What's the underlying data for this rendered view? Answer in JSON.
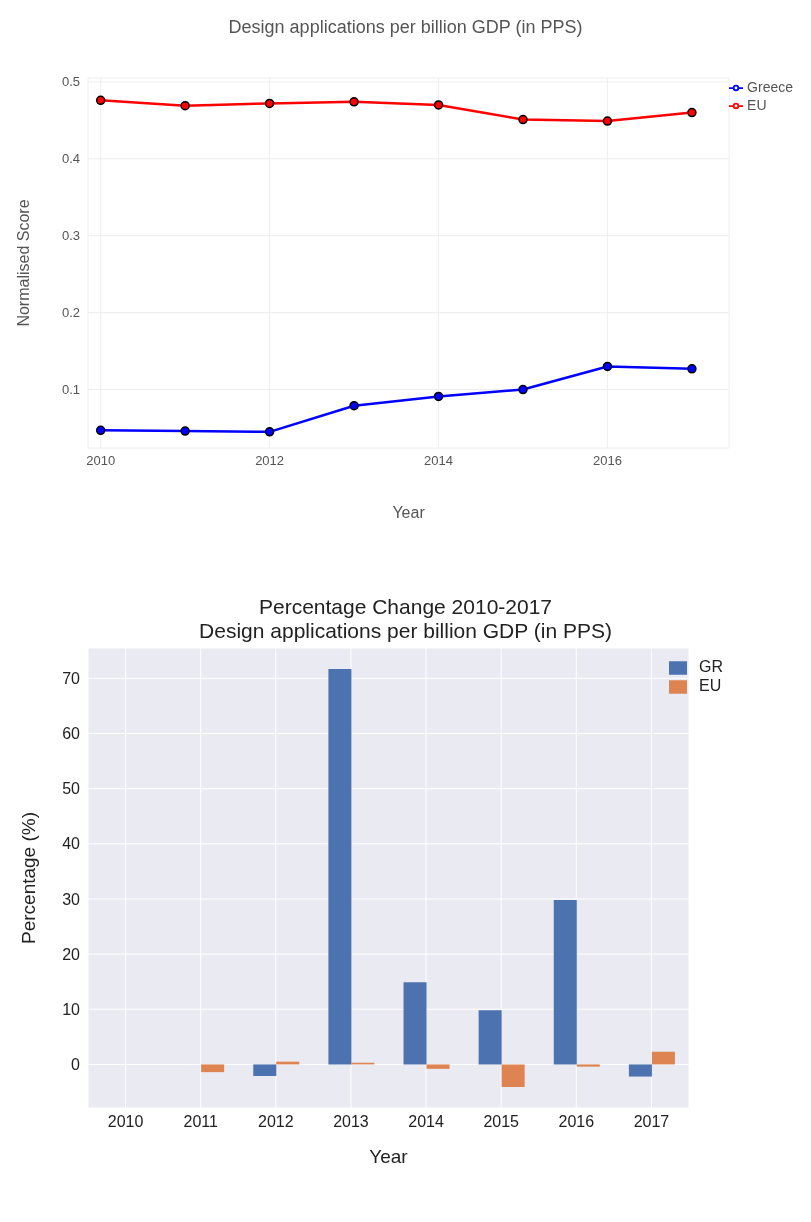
{
  "chart_data": [
    {
      "type": "line",
      "title": "Design applications per billion GDP (in PPS)",
      "xlabel": "Year",
      "ylabel": "Normalised Score",
      "x": [
        2010,
        2011,
        2012,
        2013,
        2014,
        2015,
        2016,
        2017
      ],
      "series": [
        {
          "name": "Greece",
          "color": "#0000ff",
          "values": [
            0.047,
            0.046,
            0.045,
            0.079,
            0.091,
            0.1,
            0.13,
            0.127
          ]
        },
        {
          "name": "EU",
          "color": "#ff0000",
          "values": [
            0.476,
            0.469,
            0.472,
            0.474,
            0.47,
            0.451,
            0.449,
            0.46
          ]
        }
      ],
      "xlim": [
        2009.85,
        2017.44
      ],
      "xticks": [
        2010,
        2012,
        2014,
        2016
      ],
      "ylim": [
        0.024,
        0.505
      ],
      "yticks": [
        0.1,
        0.2,
        0.3,
        0.4,
        0.5
      ],
      "grid": true,
      "legend": "top right",
      "marker": "circle"
    },
    {
      "type": "bar",
      "title": "Percentage Change 2010-2017\nDesign applications per billion GDP (in PPS)",
      "xlabel": "Year",
      "ylabel": "Percentage (%)",
      "categories": [
        "2010",
        "2011",
        "2012",
        "2013",
        "2014",
        "2015",
        "2016",
        "2017"
      ],
      "series": [
        {
          "name": "GR",
          "color": "#4c72b0",
          "values": [
            null,
            null,
            -2.1,
            71.7,
            14.9,
            9.8,
            29.8,
            -2.2
          ]
        },
        {
          "name": "EU",
          "color": "#dd8452",
          "values": [
            null,
            -1.4,
            0.5,
            0.3,
            -0.8,
            -4.1,
            -0.4,
            2.3
          ]
        }
      ],
      "ylim": [
        -7.9,
        75.5
      ],
      "yticks": [
        0,
        10,
        20,
        30,
        40,
        50,
        60,
        70
      ],
      "grid": true,
      "legend": "top right"
    }
  ]
}
